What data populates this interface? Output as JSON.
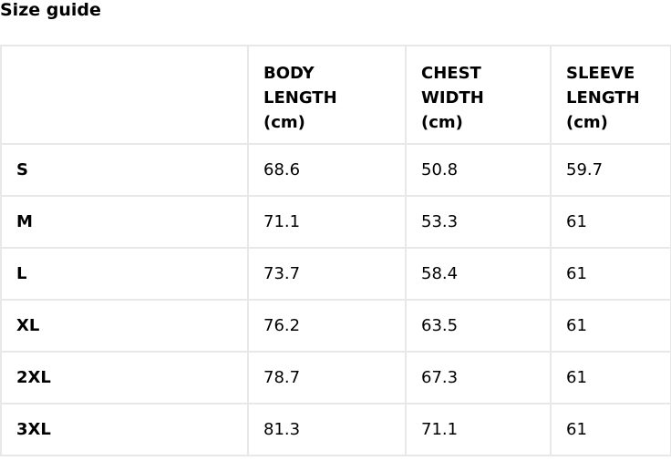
{
  "title": "Size guide",
  "headers": [
    "",
    "BODY LENGTH (cm)",
    "CHEST WIDTH (cm)",
    "SLEEVE LENGTH (cm)"
  ],
  "header_lines": [
    [],
    [
      "BODY",
      "LENGTH",
      "(cm)"
    ],
    [
      "CHEST",
      "WIDTH",
      "(cm)"
    ],
    [
      "SLEEVE",
      "LENGTH",
      "(cm)"
    ]
  ],
  "rows": [
    [
      "S",
      "68.6",
      "50.8",
      "59.7"
    ],
    [
      "M",
      "71.1",
      "53.3",
      "61"
    ],
    [
      "L",
      "73.7",
      "58.4",
      "61"
    ],
    [
      "XL",
      "76.2",
      "63.5",
      "61"
    ],
    [
      "2XL",
      "78.7",
      "67.3",
      "61"
    ],
    [
      "3XL",
      "81.3",
      "71.1",
      "61"
    ]
  ]
}
